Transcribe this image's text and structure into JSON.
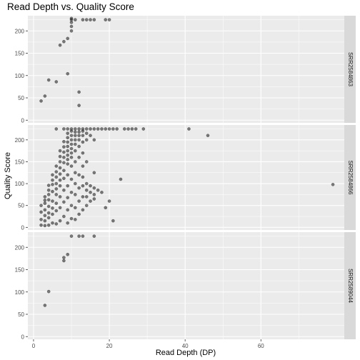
{
  "chart_data": {
    "type": "scatter",
    "title": "Read Depth vs. Quality Score",
    "xlabel": "Read Depth (DP)",
    "ylabel": "Quality Score",
    "xlim": [
      -1.5,
      82
    ],
    "ylim": [
      -6,
      234
    ],
    "x_ticks": [
      0,
      20,
      40,
      60
    ],
    "y_ticks": [
      0,
      50,
      100,
      150,
      200
    ],
    "grid": true,
    "point_color": "#000000",
    "point_alpha": 0.5,
    "panel_background": "#ebebeb",
    "strip_background": "#d9d9d9",
    "panels": [
      {
        "label": "SRR2584863",
        "points": [
          [
            2,
            43
          ],
          [
            3,
            54
          ],
          [
            4,
            90
          ],
          [
            6,
            86
          ],
          [
            7,
            168
          ],
          [
            8,
            176
          ],
          [
            9,
            104
          ],
          [
            9,
            183
          ],
          [
            10,
            200
          ],
          [
            10,
            210
          ],
          [
            10,
            219
          ],
          [
            10,
            225
          ],
          [
            10,
            228
          ],
          [
            11,
            225
          ],
          [
            12,
            33
          ],
          [
            12,
            63
          ],
          [
            13,
            225
          ],
          [
            14,
            225
          ],
          [
            15,
            225
          ],
          [
            16,
            225
          ],
          [
            19,
            225
          ],
          [
            20,
            225
          ]
        ]
      },
      {
        "label": "SRR2584866",
        "points": [
          [
            2,
            5
          ],
          [
            2,
            18
          ],
          [
            2,
            35
          ],
          [
            2,
            50
          ],
          [
            3,
            4
          ],
          [
            3,
            15
          ],
          [
            3,
            27
          ],
          [
            3,
            40
          ],
          [
            3,
            55
          ],
          [
            3,
            62
          ],
          [
            3,
            70
          ],
          [
            4,
            5
          ],
          [
            4,
            22
          ],
          [
            4,
            33
          ],
          [
            4,
            48
          ],
          [
            4,
            63
          ],
          [
            4,
            75
          ],
          [
            4,
            85
          ],
          [
            4,
            96
          ],
          [
            5,
            10
          ],
          [
            5,
            30
          ],
          [
            5,
            44
          ],
          [
            5,
            60
          ],
          [
            5,
            82
          ],
          [
            5,
            98
          ],
          [
            5,
            108
          ],
          [
            5,
            120
          ],
          [
            6,
            8
          ],
          [
            6,
            38
          ],
          [
            6,
            55
          ],
          [
            6,
            75
          ],
          [
            6,
            88
          ],
          [
            6,
            100
          ],
          [
            6,
            115
          ],
          [
            6,
            127
          ],
          [
            6,
            140
          ],
          [
            6,
            225
          ],
          [
            7,
            15
          ],
          [
            7,
            45
          ],
          [
            7,
            70
          ],
          [
            7,
            95
          ],
          [
            7,
            108
          ],
          [
            7,
            122
          ],
          [
            7,
            136
          ],
          [
            7,
            150
          ],
          [
            7,
            162
          ],
          [
            7,
            175
          ],
          [
            8,
            25
          ],
          [
            8,
            58
          ],
          [
            8,
            85
          ],
          [
            8,
            112
          ],
          [
            8,
            130
          ],
          [
            8,
            148
          ],
          [
            8,
            160
          ],
          [
            8,
            172
          ],
          [
            8,
            184
          ],
          [
            8,
            196
          ],
          [
            8,
            225
          ],
          [
            9,
            10
          ],
          [
            9,
            40
          ],
          [
            9,
            68
          ],
          [
            9,
            95
          ],
          [
            9,
            120
          ],
          [
            9,
            145
          ],
          [
            9,
            155
          ],
          [
            9,
            165
          ],
          [
            9,
            175
          ],
          [
            9,
            185
          ],
          [
            9,
            195
          ],
          [
            9,
            205
          ],
          [
            9,
            215
          ],
          [
            9,
            225
          ],
          [
            10,
            20
          ],
          [
            10,
            50
          ],
          [
            10,
            80
          ],
          [
            10,
            110
          ],
          [
            10,
            140
          ],
          [
            10,
            160
          ],
          [
            10,
            170
          ],
          [
            10,
            180
          ],
          [
            10,
            190
          ],
          [
            10,
            200
          ],
          [
            10,
            210
          ],
          [
            10,
            220
          ],
          [
            10,
            225
          ],
          [
            11,
            18
          ],
          [
            11,
            45
          ],
          [
            11,
            75
          ],
          [
            11,
            100
          ],
          [
            11,
            125
          ],
          [
            11,
            150
          ],
          [
            11,
            175
          ],
          [
            11,
            190
          ],
          [
            11,
            200
          ],
          [
            11,
            210
          ],
          [
            11,
            218
          ],
          [
            11,
            225
          ],
          [
            12,
            30
          ],
          [
            12,
            60
          ],
          [
            12,
            90
          ],
          [
            12,
            120
          ],
          [
            12,
            160
          ],
          [
            12,
            185
          ],
          [
            12,
            200
          ],
          [
            12,
            210
          ],
          [
            12,
            218
          ],
          [
            12,
            225
          ],
          [
            13,
            40
          ],
          [
            13,
            70
          ],
          [
            13,
            95
          ],
          [
            13,
            115
          ],
          [
            13,
            140
          ],
          [
            13,
            170
          ],
          [
            13,
            195
          ],
          [
            13,
            210
          ],
          [
            13,
            220
          ],
          [
            13,
            225
          ],
          [
            14,
            50
          ],
          [
            14,
            70
          ],
          [
            14,
            85
          ],
          [
            14,
            100
          ],
          [
            14,
            150
          ],
          [
            14,
            200
          ],
          [
            14,
            215
          ],
          [
            14,
            225
          ],
          [
            15,
            60
          ],
          [
            15,
            80
          ],
          [
            15,
            95
          ],
          [
            15,
            210
          ],
          [
            15,
            225
          ],
          [
            16,
            65
          ],
          [
            16,
            75
          ],
          [
            16,
            90
          ],
          [
            16,
            125
          ],
          [
            16,
            200
          ],
          [
            16,
            225
          ],
          [
            17,
            85
          ],
          [
            17,
            225
          ],
          [
            18,
            80
          ],
          [
            18,
            225
          ],
          [
            19,
            45
          ],
          [
            19,
            225
          ],
          [
            20,
            60
          ],
          [
            20,
            225
          ],
          [
            21,
            15
          ],
          [
            21,
            225
          ],
          [
            22,
            225
          ],
          [
            23,
            110
          ],
          [
            24,
            225
          ],
          [
            25,
            225
          ],
          [
            26,
            225
          ],
          [
            27,
            225
          ],
          [
            29,
            225
          ],
          [
            41,
            225
          ],
          [
            46,
            210
          ],
          [
            79,
            98
          ]
        ]
      },
      {
        "label": "SRR2589044",
        "points": [
          [
            3,
            70
          ],
          [
            4,
            101
          ],
          [
            8,
            170
          ],
          [
            8,
            177
          ],
          [
            9,
            184
          ],
          [
            10,
            225
          ],
          [
            12,
            225
          ],
          [
            13,
            225
          ],
          [
            16,
            225
          ]
        ]
      }
    ]
  }
}
